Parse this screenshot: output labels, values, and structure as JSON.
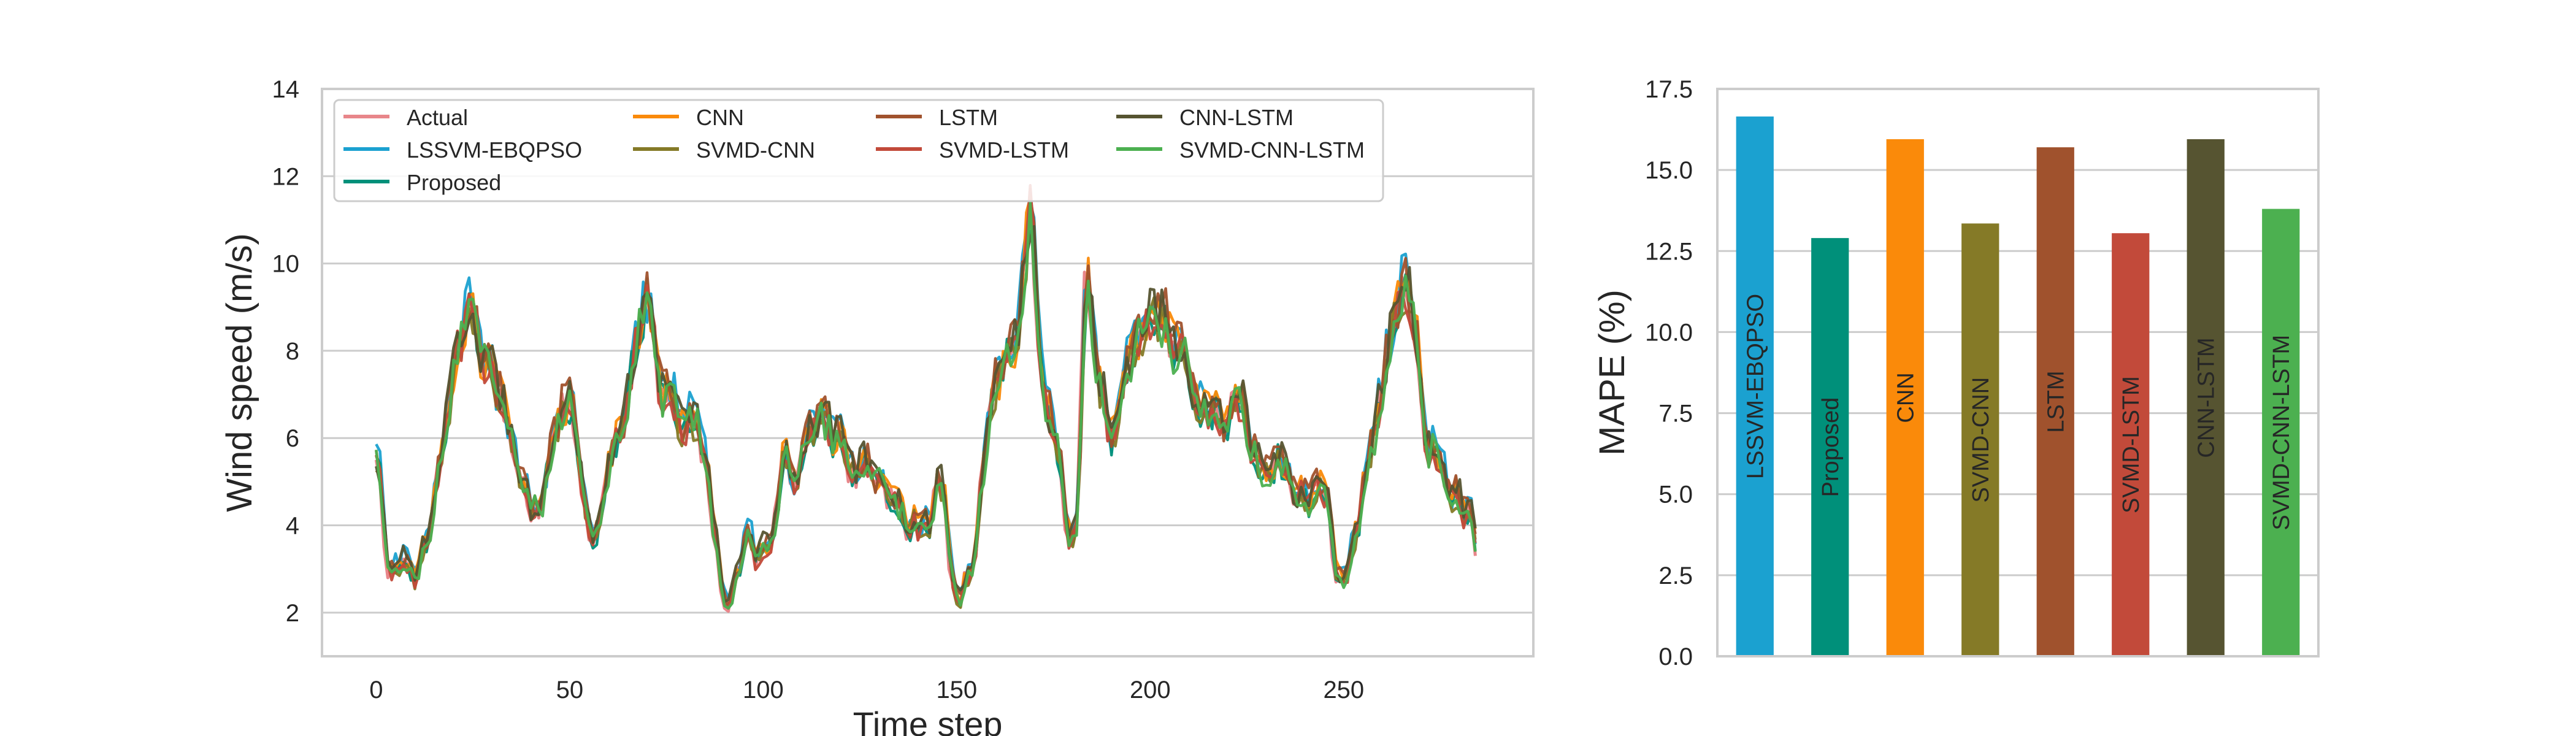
{
  "colors": {
    "Actual": "#e8868a",
    "LSSVM-EBQPSO": "#1ba1d0",
    "Proposed": "#00907a",
    "CNN": "#fa8a0a",
    "SVMD-CNN": "#857a27",
    "LSTM": "#a0522d",
    "SVMD-LSTM": "#c24a3a",
    "CNN-LSTM": "#565431",
    "SVMD-CNN-LSTM": "#4cb050",
    "grid": "#cccccc",
    "frame": "#cccccc"
  },
  "chart_data": [
    {
      "type": "line",
      "xlabel": "Time step",
      "ylabel": "Wind speed (m/s)",
      "xlim": [
        -14,
        299
      ],
      "ylim": [
        1,
        14
      ],
      "xticks": [
        0,
        50,
        100,
        150,
        200,
        250
      ],
      "yticks": [
        2,
        4,
        6,
        8,
        10,
        12,
        14
      ],
      "grid": "horizontal",
      "legend_position": "top-left",
      "legend": [
        "Actual",
        "LSSVM-EBQPSO",
        "Proposed",
        "CNN",
        "SVMD-CNN",
        "LSTM",
        "SVMD-LSTM",
        "CNN-LSTM",
        "SVMD-CNN-LSTM"
      ],
      "actual_keypoints": {
        "x": [
          0,
          3,
          6,
          10,
          14,
          18,
          22,
          24,
          27,
          30,
          34,
          37,
          40,
          43,
          46,
          50,
          53,
          56,
          60,
          64,
          67,
          70,
          73,
          76,
          79,
          82,
          85,
          88,
          90,
          92,
          95,
          98,
          101,
          105,
          108,
          112,
          116,
          119,
          122,
          126,
          130,
          134,
          138,
          142,
          146,
          148,
          151,
          155,
          158,
          162,
          166,
          168,
          169,
          170,
          172,
          175,
          178,
          181,
          183,
          186,
          190,
          194,
          198,
          202,
          206,
          210,
          214,
          218,
          222,
          226,
          230,
          234,
          238,
          242,
          246,
          248,
          252,
          256,
          260,
          263,
          265,
          268,
          271,
          274,
          278,
          282,
          284
        ],
        "y": [
          5.5,
          2.8,
          3.1,
          2.7,
          4.0,
          6.6,
          8.4,
          9.2,
          7.6,
          7.3,
          6.3,
          5.0,
          4.1,
          4.8,
          6.3,
          7.0,
          4.7,
          3.6,
          5.5,
          6.5,
          8.2,
          9.3,
          6.8,
          7.2,
          6.1,
          6.3,
          5.6,
          3.4,
          2.1,
          2.6,
          3.7,
          3.0,
          3.4,
          5.8,
          4.9,
          6.4,
          6.3,
          6.1,
          5.0,
          5.3,
          5.2,
          4.4,
          4.0,
          4.0,
          4.9,
          3.0,
          2.2,
          3.7,
          6.5,
          7.8,
          8.6,
          10.5,
          11.7,
          9.5,
          7.2,
          6.1,
          3.9,
          4.0,
          9.8,
          7.5,
          6.0,
          7.8,
          8.6,
          8.6,
          8.2,
          7.3,
          6.9,
          6.2,
          7.1,
          5.5,
          5.3,
          5.2,
          4.7,
          4.9,
          4.6,
          2.7,
          3.7,
          5.2,
          7.2,
          8.8,
          9.7,
          8.6,
          5.7,
          5.4,
          4.5,
          4.5,
          3.3
        ]
      },
      "series": [
        {
          "name": "Actual",
          "role": "actual"
        },
        {
          "name": "LSSVM-EBQPSO",
          "offset": 0.15,
          "mape": 0.16
        },
        {
          "name": "Proposed",
          "offset": 0.05,
          "mape": 0.12
        },
        {
          "name": "CNN",
          "offset": 0.1,
          "mape": 0.15
        },
        {
          "name": "SVMD-CNN",
          "offset": 0.08,
          "mape": 0.125
        },
        {
          "name": "LSTM",
          "offset": 0.12,
          "mape": 0.15
        },
        {
          "name": "SVMD-LSTM",
          "offset": 0.06,
          "mape": 0.125
        },
        {
          "name": "CNN-LSTM",
          "offset": 0.14,
          "mape": 0.15
        },
        {
          "name": "SVMD-CNN-LSTM",
          "offset": 0.07,
          "mape": 0.13
        }
      ]
    },
    {
      "type": "bar",
      "ylabel": "MAPE (%)",
      "ylim": [
        0,
        17.5
      ],
      "yticks": [
        0.0,
        2.5,
        5.0,
        7.5,
        10.0,
        12.5,
        15.0,
        17.5
      ],
      "ytick_labels": [
        "0.0",
        "2.5",
        "5.0",
        "7.5",
        "10.0",
        "12.5",
        "15.0",
        "17.5"
      ],
      "grid": "horizontal",
      "categories": [
        "LSSVM-EBQPSO",
        "Proposed",
        "CNN",
        "SVMD-CNN",
        "LSTM",
        "SVMD-LSTM",
        "CNN-LSTM",
        "SVMD-CNN-LSTM"
      ],
      "values": [
        16.65,
        12.9,
        15.95,
        13.35,
        15.7,
        13.05,
        15.95,
        13.8
      ],
      "label_placement": "inside-vertical"
    }
  ]
}
